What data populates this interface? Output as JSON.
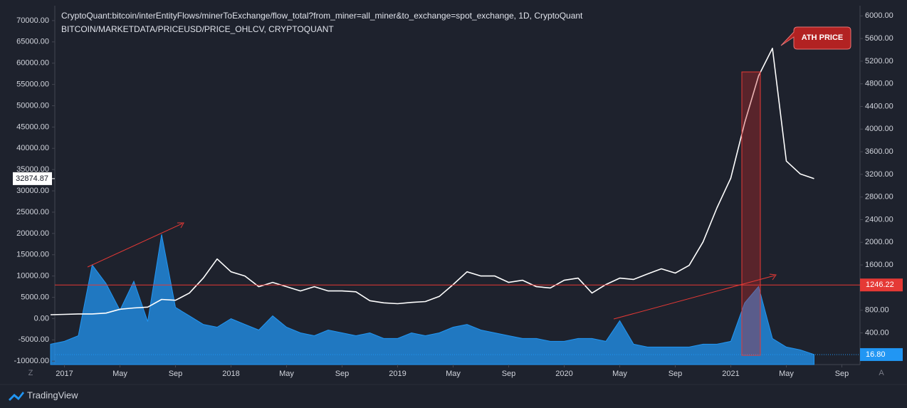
{
  "chart_data": {
    "type": "line",
    "x": [
      "2016-12",
      "2017-01",
      "2017-02",
      "2017-03",
      "2017-04",
      "2017-05",
      "2017-06",
      "2017-07",
      "2017-08",
      "2017-09",
      "2017-10",
      "2017-11",
      "2017-12",
      "2018-01",
      "2018-02",
      "2018-03",
      "2018-04",
      "2018-05",
      "2018-06",
      "2018-07",
      "2018-08",
      "2018-09",
      "2018-10",
      "2018-11",
      "2018-12",
      "2019-01",
      "2019-02",
      "2019-03",
      "2019-04",
      "2019-05",
      "2019-06",
      "2019-07",
      "2019-08",
      "2019-09",
      "2019-10",
      "2019-11",
      "2019-12",
      "2020-01",
      "2020-02",
      "2020-03",
      "2020-04",
      "2020-05",
      "2020-06",
      "2020-07",
      "2020-08",
      "2020-09",
      "2020-10",
      "2020-11",
      "2020-12",
      "2021-01",
      "2021-02",
      "2021-03",
      "2021-04",
      "2021-05",
      "2021-06",
      "2021-07"
    ],
    "series": [
      {
        "name": "CryptoQuant:bitcoin/interEntityFlows/minerToExchange/flow_total?from_miner=all_miner&to_exchange=spot_exchange, 1D, CryptoQuant",
        "color": "#2196f3",
        "axis": "y2",
        "values": [
          200,
          250,
          350,
          1600,
          1270,
          800,
          1310,
          600,
          2140,
          850,
          700,
          550,
          500,
          650,
          550,
          450,
          700,
          500,
          400,
          350,
          450,
          400,
          350,
          400,
          300,
          300,
          400,
          350,
          400,
          500,
          550,
          450,
          400,
          350,
          300,
          300,
          250,
          250,
          300,
          300,
          250,
          615,
          200,
          150,
          150,
          150,
          150,
          200,
          200,
          250,
          930,
          1220,
          300,
          150,
          100,
          16.8
        ]
      },
      {
        "name": "BITCOIN/MARKETDATA/PRICEUSD/PRICE_OHLCV, CRYPTOQUANT",
        "color": "#ffffff",
        "values": [
          900,
          1000,
          1100,
          1100,
          1300,
          2200,
          2500,
          2700,
          4500,
          4300,
          6000,
          9500,
          14000,
          11000,
          10000,
          7500,
          8500,
          7500,
          6500,
          7500,
          6500,
          6500,
          6300,
          4200,
          3700,
          3500,
          3800,
          4000,
          5200,
          8000,
          11000,
          10000,
          10000,
          8500,
          9000,
          7500,
          7200,
          9000,
          9500,
          6000,
          8000,
          9500,
          9200,
          10500,
          11700,
          10700,
          12500,
          18000,
          26000,
          33000,
          46000,
          57000,
          63500,
          37000,
          34000,
          32874.87
        ]
      }
    ],
    "xlim": [
      "2016-12",
      "2021-10"
    ],
    "xticks": [
      {
        "value": "2017-01",
        "label": "2017"
      },
      {
        "value": "2017-05",
        "label": "May"
      },
      {
        "value": "2017-09",
        "label": "Sep"
      },
      {
        "value": "2018-01",
        "label": "2018"
      },
      {
        "value": "2018-05",
        "label": "May"
      },
      {
        "value": "2018-09",
        "label": "Sep"
      },
      {
        "value": "2019-01",
        "label": "2019"
      },
      {
        "value": "2019-05",
        "label": "May"
      },
      {
        "value": "2019-09",
        "label": "Sep"
      },
      {
        "value": "2020-01",
        "label": "2020"
      },
      {
        "value": "2020-05",
        "label": "May"
      },
      {
        "value": "2020-09",
        "label": "Sep"
      },
      {
        "value": "2021-01",
        "label": "2021"
      },
      {
        "value": "2021-05",
        "label": "May"
      },
      {
        "value": "2021-09",
        "label": "Sep"
      }
    ],
    "ylim": [
      -10800,
      73500
    ],
    "yticks": [
      {
        "value": -10000,
        "label": "-10000.00"
      },
      {
        "value": -5000,
        "label": "-5000.00"
      },
      {
        "value": 0,
        "label": "0.00"
      },
      {
        "value": 5000,
        "label": "5000.00"
      },
      {
        "value": 10000,
        "label": "10000.00"
      },
      {
        "value": 15000,
        "label": "15000.00"
      },
      {
        "value": 20000,
        "label": "20000.00"
      },
      {
        "value": 25000,
        "label": "25000.00"
      },
      {
        "value": 30000,
        "label": "30000.00"
      },
      {
        "value": 35000,
        "label": "35000.00"
      },
      {
        "value": 40000,
        "label": "40000.00"
      },
      {
        "value": 45000,
        "label": "45000.00"
      },
      {
        "value": 50000,
        "label": "50000.00"
      },
      {
        "value": 55000,
        "label": "55000.00"
      },
      {
        "value": 60000,
        "label": "60000.00"
      },
      {
        "value": 65000,
        "label": "65000.00"
      },
      {
        "value": 70000,
        "label": "70000.00"
      }
    ],
    "y2lim": [
      -160,
      6180
    ],
    "y2ticks": [
      {
        "value": 400,
        "label": "400.00"
      },
      {
        "value": 800,
        "label": "800.00"
      },
      {
        "value": 1200,
        "label": "1200.00"
      },
      {
        "value": 1600,
        "label": "1600.00"
      },
      {
        "value": 2000,
        "label": "2000.00"
      },
      {
        "value": 2400,
        "label": "2400.00"
      },
      {
        "value": 2800,
        "label": "2800.00"
      },
      {
        "value": 3200,
        "label": "3200.00"
      },
      {
        "value": 3600,
        "label": "3600.00"
      },
      {
        "value": 4000,
        "label": "4000.00"
      },
      {
        "value": 4400,
        "label": "4400.00"
      },
      {
        "value": 4800,
        "label": "4800.00"
      },
      {
        "value": 5200,
        "label": "5200.00"
      },
      {
        "value": 5600,
        "label": "5600.00"
      },
      {
        "value": 6000,
        "label": "6000.00"
      }
    ],
    "price_marker": 32874.87,
    "horizontal_line": 1246.22,
    "last_flow_marker": {
      "value": 16.8,
      "label": "16.80"
    },
    "annotation": "ATH PRICE",
    "axis_buttons": [
      "Z",
      "A"
    ],
    "branding": "TradingView"
  }
}
